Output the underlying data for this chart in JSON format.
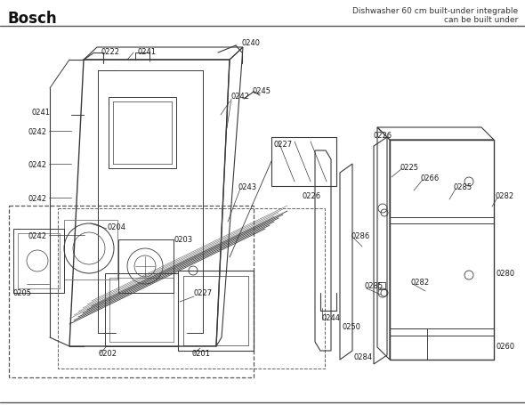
{
  "title": "Bosch",
  "subtitle": "Dishwasher 60 cm built-under integrable\ncan be built under",
  "bg_color": "#ffffff",
  "lc": "#3a3a3a",
  "fs": 6.0
}
